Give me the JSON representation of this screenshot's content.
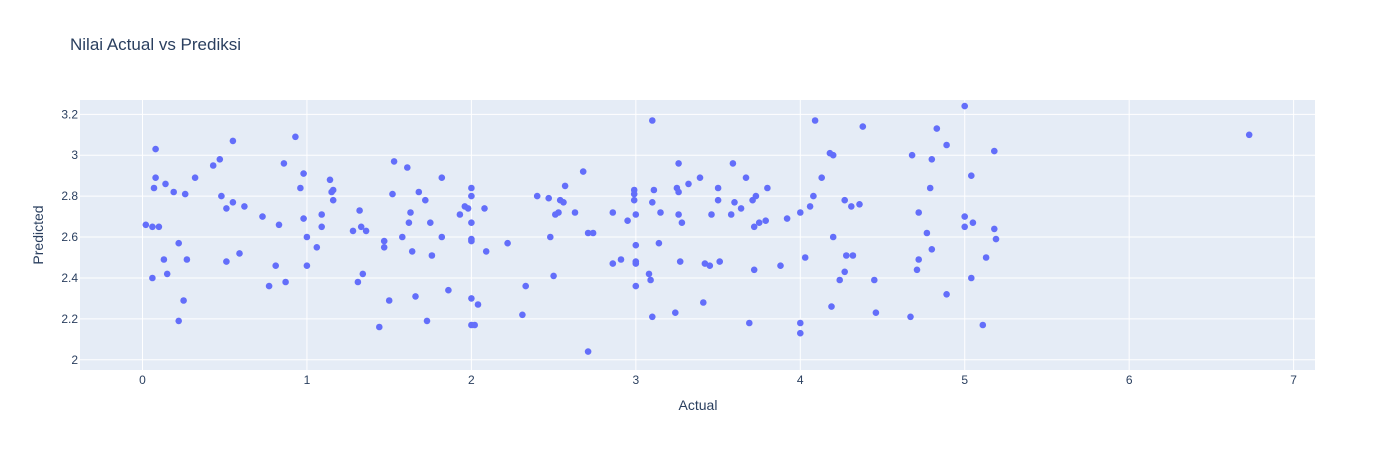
{
  "chart_data": {
    "type": "scatter",
    "title": "Nilai Actual vs Prediksi",
    "xlabel": "Actual",
    "ylabel": "Predicted",
    "xlim": [
      -0.38,
      7.13
    ],
    "ylim": [
      1.95,
      3.27
    ],
    "xticks": [
      0,
      1,
      2,
      3,
      4,
      5,
      6,
      7
    ],
    "yticks": [
      2,
      2.2,
      2.4,
      2.6,
      2.8,
      3,
      3.2
    ],
    "grid": true,
    "colors": {
      "marker": "#636efa",
      "plot_bg": "#e5ecf6",
      "grid": "#ffffff",
      "text": "#2a3f5f"
    },
    "points": [
      [
        0.02,
        2.66
      ],
      [
        0.06,
        2.65
      ],
      [
        0.06,
        2.4
      ],
      [
        0.07,
        2.84
      ],
      [
        0.08,
        3.03
      ],
      [
        0.08,
        2.89
      ],
      [
        0.1,
        2.65
      ],
      [
        0.13,
        2.49
      ],
      [
        0.14,
        2.86
      ],
      [
        0.15,
        2.42
      ],
      [
        0.19,
        2.82
      ],
      [
        0.22,
        2.57
      ],
      [
        0.22,
        2.19
      ],
      [
        0.25,
        2.29
      ],
      [
        0.26,
        2.81
      ],
      [
        0.27,
        2.49
      ],
      [
        0.32,
        2.89
      ],
      [
        0.43,
        2.95
      ],
      [
        0.47,
        2.98
      ],
      [
        0.48,
        2.8
      ],
      [
        0.51,
        2.48
      ],
      [
        0.51,
        2.74
      ],
      [
        0.55,
        3.07
      ],
      [
        0.55,
        2.77
      ],
      [
        0.59,
        2.52
      ],
      [
        0.62,
        2.75
      ],
      [
        0.73,
        2.7
      ],
      [
        0.77,
        2.36
      ],
      [
        0.81,
        2.46
      ],
      [
        0.83,
        2.66
      ],
      [
        0.86,
        2.96
      ],
      [
        0.87,
        2.38
      ],
      [
        0.93,
        3.09
      ],
      [
        0.96,
        2.84
      ],
      [
        0.98,
        2.69
      ],
      [
        0.98,
        2.91
      ],
      [
        1.0,
        2.46
      ],
      [
        1.0,
        2.6
      ],
      [
        1.06,
        2.55
      ],
      [
        1.09,
        2.71
      ],
      [
        1.09,
        2.65
      ],
      [
        1.14,
        2.88
      ],
      [
        1.15,
        2.82
      ],
      [
        1.16,
        2.78
      ],
      [
        1.16,
        2.83
      ],
      [
        1.28,
        2.63
      ],
      [
        1.31,
        2.38
      ],
      [
        1.32,
        2.73
      ],
      [
        1.33,
        2.65
      ],
      [
        1.34,
        2.42
      ],
      [
        1.36,
        2.63
      ],
      [
        1.44,
        2.16
      ],
      [
        1.47,
        2.58
      ],
      [
        1.47,
        2.55
      ],
      [
        1.5,
        2.29
      ],
      [
        1.52,
        2.81
      ],
      [
        1.53,
        2.97
      ],
      [
        1.58,
        2.6
      ],
      [
        1.61,
        2.94
      ],
      [
        1.62,
        2.67
      ],
      [
        1.63,
        2.72
      ],
      [
        1.64,
        2.53
      ],
      [
        1.66,
        2.31
      ],
      [
        1.68,
        2.82
      ],
      [
        1.72,
        2.78
      ],
      [
        1.73,
        2.19
      ],
      [
        1.75,
        2.67
      ],
      [
        1.76,
        2.51
      ],
      [
        1.82,
        2.6
      ],
      [
        1.82,
        2.89
      ],
      [
        1.86,
        2.34
      ],
      [
        1.93,
        2.71
      ],
      [
        1.96,
        2.75
      ],
      [
        1.98,
        2.74
      ],
      [
        2.0,
        2.84
      ],
      [
        2.0,
        2.8
      ],
      [
        2.0,
        2.67
      ],
      [
        2.0,
        2.59
      ],
      [
        2.0,
        2.58
      ],
      [
        2.0,
        2.3
      ],
      [
        2.0,
        2.17
      ],
      [
        2.02,
        2.17
      ],
      [
        2.04,
        2.27
      ],
      [
        2.08,
        2.74
      ],
      [
        2.09,
        2.53
      ],
      [
        2.22,
        2.57
      ],
      [
        2.31,
        2.22
      ],
      [
        2.33,
        2.36
      ],
      [
        2.4,
        2.8
      ],
      [
        2.47,
        2.79
      ],
      [
        2.48,
        2.6
      ],
      [
        2.5,
        2.41
      ],
      [
        2.51,
        2.71
      ],
      [
        2.53,
        2.72
      ],
      [
        2.54,
        2.78
      ],
      [
        2.56,
        2.77
      ],
      [
        2.57,
        2.85
      ],
      [
        2.63,
        2.72
      ],
      [
        2.68,
        2.92
      ],
      [
        2.71,
        2.04
      ],
      [
        2.71,
        2.62
      ],
      [
        2.74,
        2.62
      ],
      [
        2.86,
        2.72
      ],
      [
        2.86,
        2.47
      ],
      [
        2.91,
        2.49
      ],
      [
        2.95,
        2.68
      ],
      [
        2.99,
        2.83
      ],
      [
        2.99,
        2.81
      ],
      [
        2.99,
        2.78
      ],
      [
        3.0,
        2.71
      ],
      [
        3.0,
        2.56
      ],
      [
        3.0,
        2.48
      ],
      [
        3.0,
        2.47
      ],
      [
        3.0,
        2.36
      ],
      [
        3.08,
        2.42
      ],
      [
        3.09,
        2.39
      ],
      [
        3.1,
        3.17
      ],
      [
        3.1,
        2.77
      ],
      [
        3.1,
        2.21
      ],
      [
        3.11,
        2.83
      ],
      [
        3.14,
        2.57
      ],
      [
        3.15,
        2.72
      ],
      [
        3.24,
        2.23
      ],
      [
        3.25,
        2.84
      ],
      [
        3.26,
        2.82
      ],
      [
        3.26,
        2.96
      ],
      [
        3.26,
        2.71
      ],
      [
        3.27,
        2.48
      ],
      [
        3.28,
        2.67
      ],
      [
        3.32,
        2.86
      ],
      [
        3.39,
        2.89
      ],
      [
        3.41,
        2.28
      ],
      [
        3.42,
        2.47
      ],
      [
        3.45,
        2.46
      ],
      [
        3.46,
        2.71
      ],
      [
        3.5,
        2.78
      ],
      [
        3.5,
        2.84
      ],
      [
        3.51,
        2.48
      ],
      [
        3.58,
        2.71
      ],
      [
        3.59,
        2.96
      ],
      [
        3.6,
        2.77
      ],
      [
        3.64,
        2.74
      ],
      [
        3.67,
        2.89
      ],
      [
        3.69,
        2.18
      ],
      [
        3.71,
        2.78
      ],
      [
        3.72,
        2.44
      ],
      [
        3.72,
        2.65
      ],
      [
        3.73,
        2.8
      ],
      [
        3.75,
        2.67
      ],
      [
        3.79,
        2.68
      ],
      [
        3.8,
        2.84
      ],
      [
        3.88,
        2.46
      ],
      [
        3.92,
        2.69
      ],
      [
        4.0,
        2.72
      ],
      [
        4.0,
        2.18
      ],
      [
        4.0,
        2.13
      ],
      [
        4.03,
        2.5
      ],
      [
        4.06,
        2.75
      ],
      [
        4.08,
        2.8
      ],
      [
        4.09,
        3.17
      ],
      [
        4.13,
        2.89
      ],
      [
        4.18,
        3.01
      ],
      [
        4.19,
        2.26
      ],
      [
        4.2,
        3.0
      ],
      [
        4.2,
        2.6
      ],
      [
        4.24,
        2.39
      ],
      [
        4.27,
        2.78
      ],
      [
        4.27,
        2.43
      ],
      [
        4.28,
        2.51
      ],
      [
        4.31,
        2.75
      ],
      [
        4.32,
        2.51
      ],
      [
        4.36,
        2.76
      ],
      [
        4.38,
        3.14
      ],
      [
        4.45,
        2.39
      ],
      [
        4.46,
        2.23
      ],
      [
        4.67,
        2.21
      ],
      [
        4.68,
        3.0
      ],
      [
        4.71,
        2.44
      ],
      [
        4.72,
        2.72
      ],
      [
        4.72,
        2.49
      ],
      [
        4.77,
        2.62
      ],
      [
        4.79,
        2.84
      ],
      [
        4.8,
        2.98
      ],
      [
        4.8,
        2.54
      ],
      [
        4.83,
        3.13
      ],
      [
        4.89,
        3.05
      ],
      [
        4.89,
        2.32
      ],
      [
        5.0,
        3.24
      ],
      [
        5.0,
        2.7
      ],
      [
        5.0,
        2.65
      ],
      [
        5.04,
        2.4
      ],
      [
        5.04,
        2.9
      ],
      [
        5.05,
        2.67
      ],
      [
        5.11,
        2.17
      ],
      [
        5.13,
        2.5
      ],
      [
        5.18,
        3.02
      ],
      [
        5.18,
        2.64
      ],
      [
        5.19,
        2.59
      ],
      [
        6.73,
        3.1
      ]
    ]
  }
}
